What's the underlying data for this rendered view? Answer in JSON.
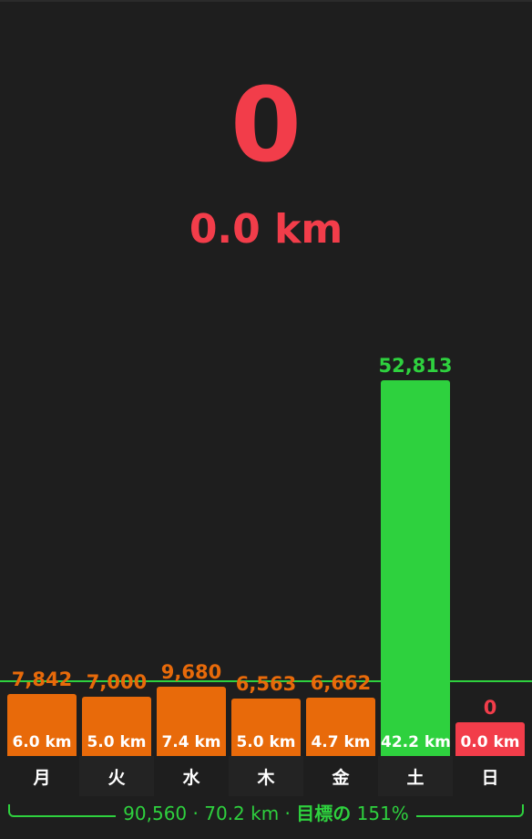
{
  "today": {
    "steps": "0",
    "distance": "0.0 km"
  },
  "colors": {
    "over_goal": "#2ed13e",
    "under_goal": "#e86a0a",
    "today": "#f23d4a",
    "background": "#1e1e1e"
  },
  "chart_data": {
    "type": "bar",
    "categories": [
      "月",
      "火",
      "水",
      "木",
      "金",
      "土",
      "日"
    ],
    "values": [
      7842,
      7000,
      9680,
      6563,
      6662,
      52813,
      0
    ],
    "value_labels": [
      "7,842",
      "7,000",
      "9,680",
      "6,563",
      "6,662",
      "52,813",
      "0"
    ],
    "distance_labels": [
      "6.0 km",
      "5.0 km",
      "7.4 km",
      "5.0 km",
      "4.7 km",
      "42.2 km",
      "0.0 km"
    ],
    "bar_status": [
      "under",
      "under",
      "under",
      "under",
      "under",
      "over",
      "today"
    ],
    "goal": 10000,
    "ylim": [
      0,
      52813
    ]
  },
  "summary": {
    "totals": "90,560 · 70.2 km ·",
    "goal_text": "目標の",
    "goal_percent": "151%"
  }
}
